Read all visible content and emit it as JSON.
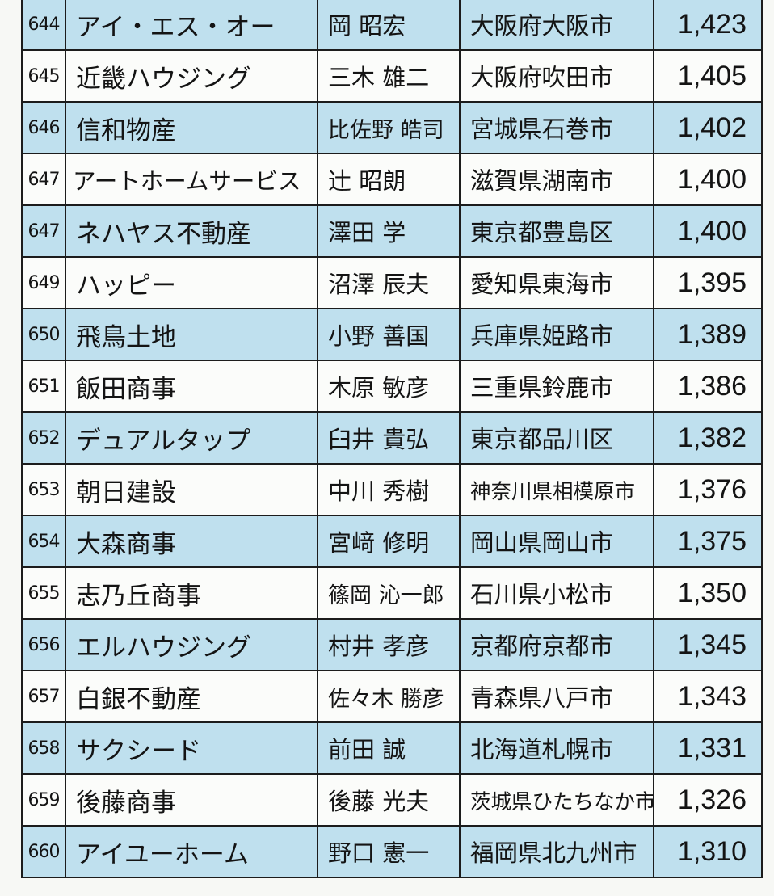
{
  "rows": [
    {
      "rank": "644",
      "company": "アイ・エス・オー",
      "representative": "岡 昭宏",
      "location": "大阪府大阪市",
      "value": "1,423"
    },
    {
      "rank": "645",
      "company": "近畿ハウジング",
      "representative": "三木 雄二",
      "location": "大阪府吹田市",
      "value": "1,405"
    },
    {
      "rank": "646",
      "company": "信和物産",
      "representative": "比佐野 皓司",
      "location": "宮城県石巻市",
      "value": "1,402"
    },
    {
      "rank": "647",
      "company": "アートホームサービス",
      "representative": "辻 昭朗",
      "location": "滋賀県湖南市",
      "value": "1,400"
    },
    {
      "rank": "647",
      "company": "ネハヤス不動産",
      "representative": "澤田 学",
      "location": "東京都豊島区",
      "value": "1,400"
    },
    {
      "rank": "649",
      "company": "ハッピー",
      "representative": "沼澤 辰夫",
      "location": "愛知県東海市",
      "value": "1,395"
    },
    {
      "rank": "650",
      "company": "飛鳥土地",
      "representative": "小野 善国",
      "location": "兵庫県姫路市",
      "value": "1,389"
    },
    {
      "rank": "651",
      "company": "飯田商事",
      "representative": "木原 敏彦",
      "location": "三重県鈴鹿市",
      "value": "1,386"
    },
    {
      "rank": "652",
      "company": "デュアルタップ",
      "representative": "臼井 貴弘",
      "location": "東京都品川区",
      "value": "1,382"
    },
    {
      "rank": "653",
      "company": "朝日建設",
      "representative": "中川 秀樹",
      "location": "神奈川県相模原市",
      "value": "1,376"
    },
    {
      "rank": "654",
      "company": "大森商事",
      "representative": "宮﨑 修明",
      "location": "岡山県岡山市",
      "value": "1,375"
    },
    {
      "rank": "655",
      "company": "志乃丘商事",
      "representative": "篠岡 沁一郎",
      "location": "石川県小松市",
      "value": "1,350"
    },
    {
      "rank": "656",
      "company": "エルハウジング",
      "representative": "村井 孝彦",
      "location": "京都府京都市",
      "value": "1,345"
    },
    {
      "rank": "657",
      "company": "白銀不動産",
      "representative": "佐々木 勝彦",
      "location": "青森県八戸市",
      "value": "1,343"
    },
    {
      "rank": "658",
      "company": "サクシード",
      "representative": "前田 誠",
      "location": "北海道札幌市",
      "value": "1,331"
    },
    {
      "rank": "659",
      "company": "後藤商事",
      "representative": "後藤 光夫",
      "location": "茨城県ひたちなか市",
      "value": "1,326"
    },
    {
      "rank": "660",
      "company": "アイユーホーム",
      "representative": "野口 憲一",
      "location": "福岡県北九州市",
      "value": "1,310"
    }
  ]
}
